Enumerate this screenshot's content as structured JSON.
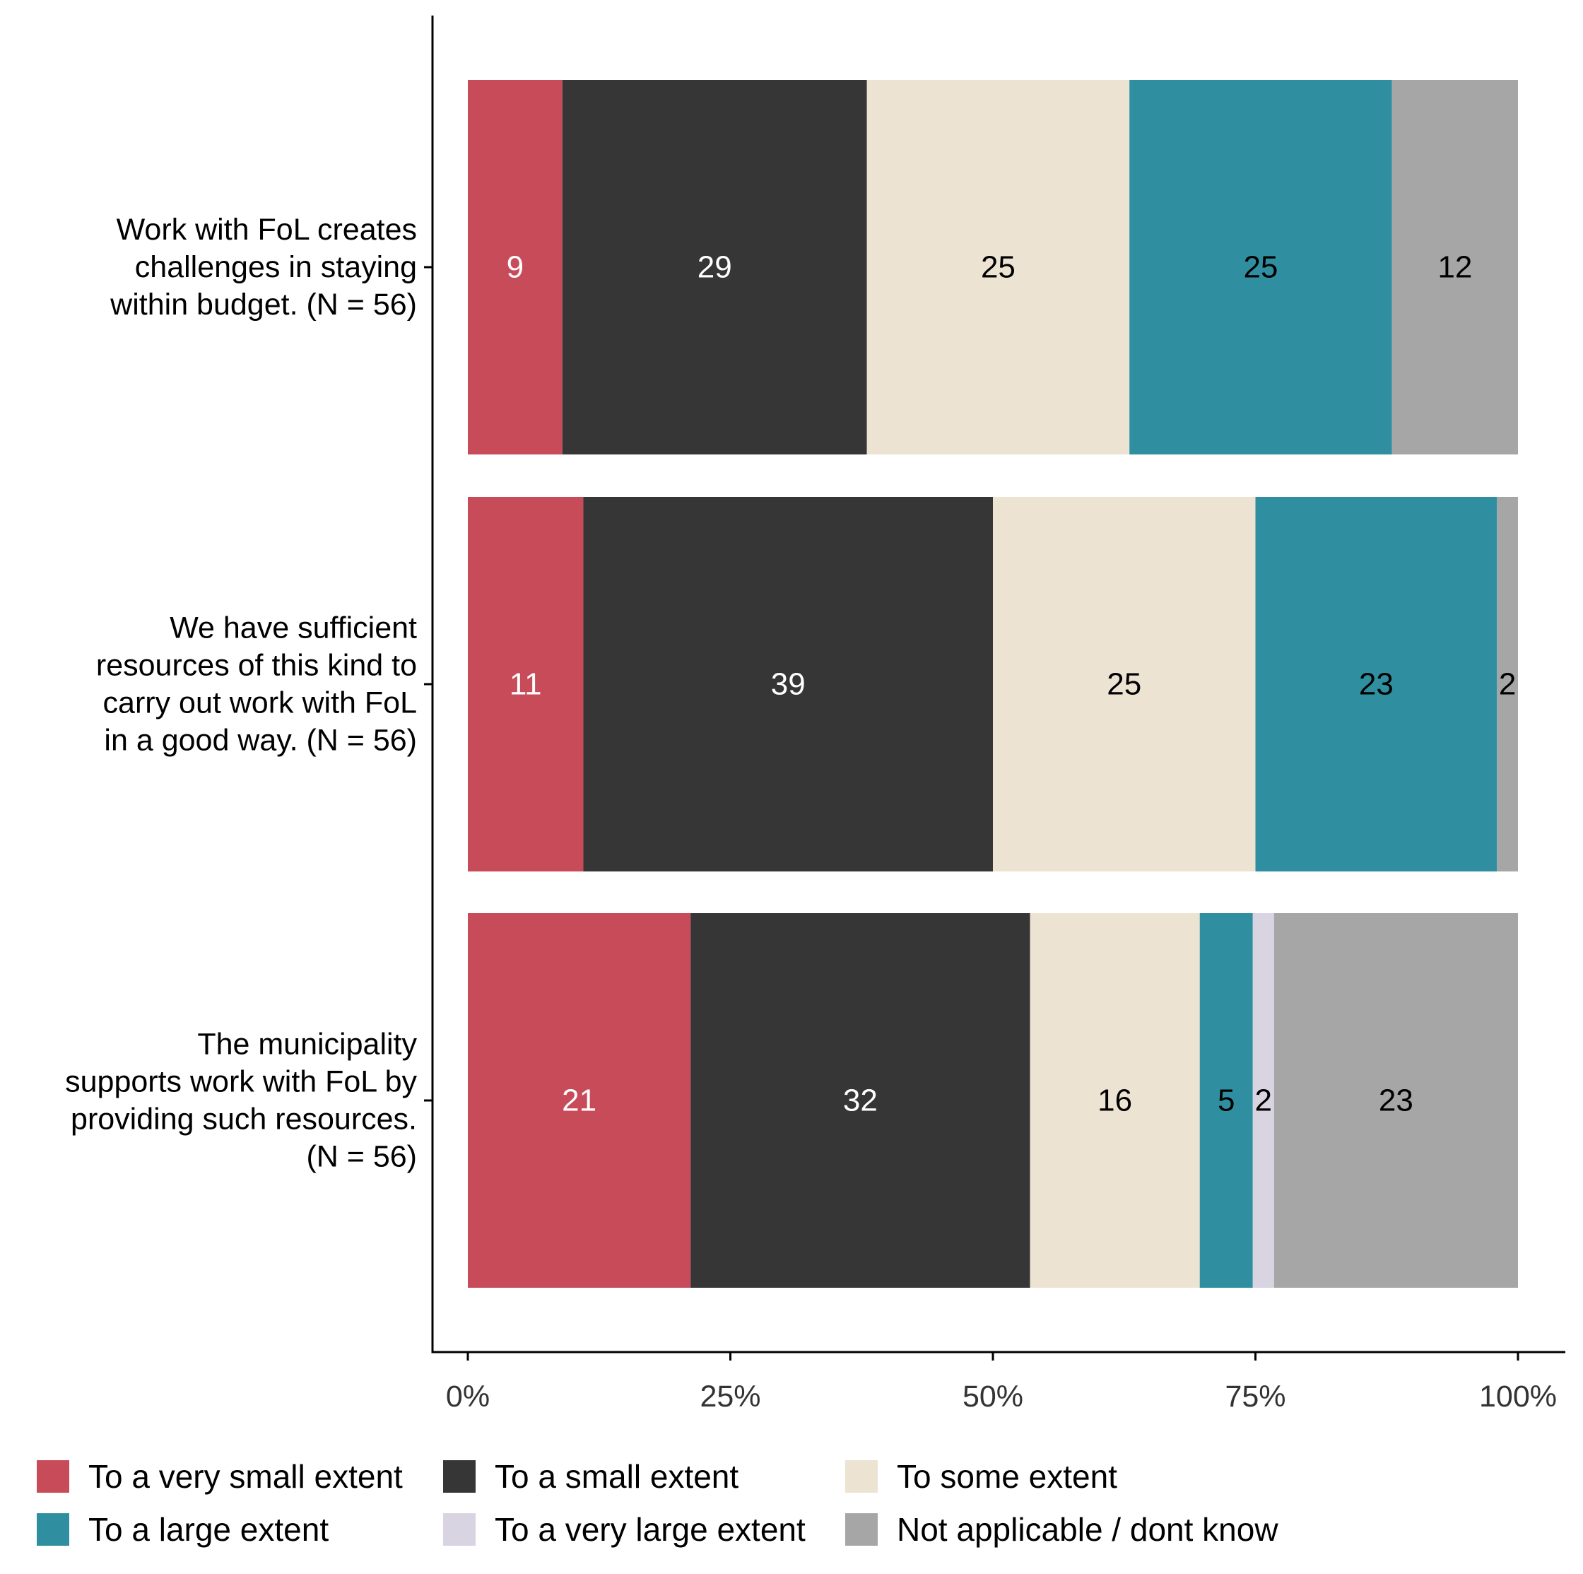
{
  "chart_data": {
    "type": "bar",
    "orientation": "horizontal",
    "stacked": true,
    "percent": true,
    "categories": [
      "Work with FoL creates challenges in staying within budget. (N = 56)",
      "We have sufficient resources of this kind to carry out work with FoL in a good way. (N = 56)",
      "The municipality supports work with FoL by providing such resources. (N = 56)"
    ],
    "category_lines": [
      [
        "Work with FoL creates",
        "challenges in staying",
        "within budget. (N = 56)"
      ],
      [
        "We have sufficient",
        "resources of this kind to",
        "carry out work with FoL",
        "in a good way. (N = 56)"
      ],
      [
        "The municipality",
        "supports work with FoL by",
        "providing such resources.",
        "(N = 56)"
      ]
    ],
    "series": [
      {
        "name": "To a very small extent",
        "color": "#C84B5A",
        "label_color": "#FFFFFF",
        "values": [
          9,
          11,
          21
        ],
        "labels": [
          "9",
          "11",
          "21"
        ]
      },
      {
        "name": "To a small extent",
        "color": "#363636",
        "label_color": "#FFFFFF",
        "values": [
          29,
          39,
          32
        ],
        "labels": [
          "29",
          "39",
          "32"
        ]
      },
      {
        "name": "To some extent",
        "color": "#EDE3D3",
        "label_color": "#000000",
        "values": [
          25,
          25,
          16
        ],
        "labels": [
          "25",
          "25",
          "16"
        ]
      },
      {
        "name": "To a large extent",
        "color": "#2F8FA0",
        "label_color": "#000000",
        "values": [
          25,
          23,
          5
        ],
        "labels": [
          "25",
          "23",
          "5"
        ]
      },
      {
        "name": "To a very large extent",
        "color": "#D9D4E1",
        "label_color": "#000000",
        "values": [
          0,
          0,
          2
        ],
        "labels": [
          "",
          "",
          "2"
        ]
      },
      {
        "name": "Not applicable / dont know",
        "color": "#A6A6A6",
        "label_color": "#000000",
        "values": [
          12,
          2,
          23
        ],
        "labels": [
          "12",
          "2",
          "23"
        ]
      }
    ],
    "xlim": [
      0,
      100
    ],
    "x_ticks": [
      0,
      25,
      50,
      75,
      100
    ],
    "x_tick_labels": [
      "0%",
      "25%",
      "50%",
      "75%",
      "100%"
    ],
    "xlabel": "",
    "ylabel": "",
    "title": "",
    "grid": false,
    "legend_position": "bottom"
  }
}
